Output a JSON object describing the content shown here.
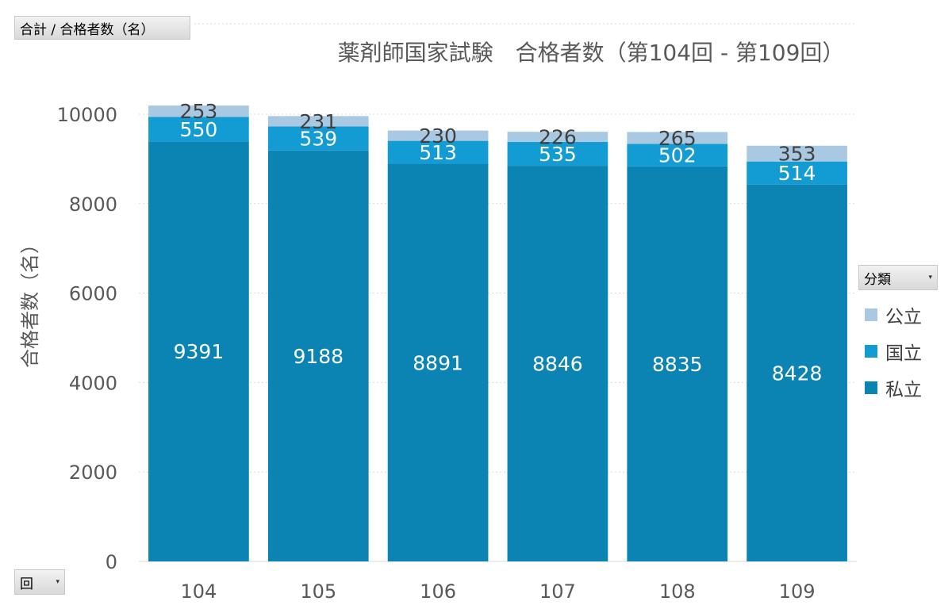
{
  "buttons": {
    "values_field": "合計 / 合格者数（名）",
    "axis_field": "回",
    "legend_field": "分類"
  },
  "legend": [
    {
      "label": "公立",
      "color": "#a9c9e3"
    },
    {
      "label": "国立",
      "color": "#139bd4"
    },
    {
      "label": "私立",
      "color": "#0b84b4"
    }
  ],
  "chart_data": {
    "type": "bar",
    "stacked": true,
    "title": "薬剤師国家試験　合格者数（第104回 - 第109回）",
    "ylabel": "合格者数（名）",
    "xlabel": "",
    "categories": [
      "104",
      "105",
      "106",
      "107",
      "108",
      "109"
    ],
    "ylim": [
      0,
      10000
    ],
    "yticks": [
      0,
      2000,
      4000,
      6000,
      8000,
      10000
    ],
    "grid": true,
    "legend_position": "right",
    "series": [
      {
        "name": "私立",
        "color": "#0b84b4",
        "values": [
          9391,
          9188,
          8891,
          8846,
          8835,
          8428
        ]
      },
      {
        "name": "国立",
        "color": "#139bd4",
        "values": [
          550,
          539,
          513,
          535,
          502,
          514
        ]
      },
      {
        "name": "公立",
        "color": "#a9c9e3",
        "values": [
          253,
          231,
          230,
          226,
          265,
          353
        ]
      }
    ]
  }
}
